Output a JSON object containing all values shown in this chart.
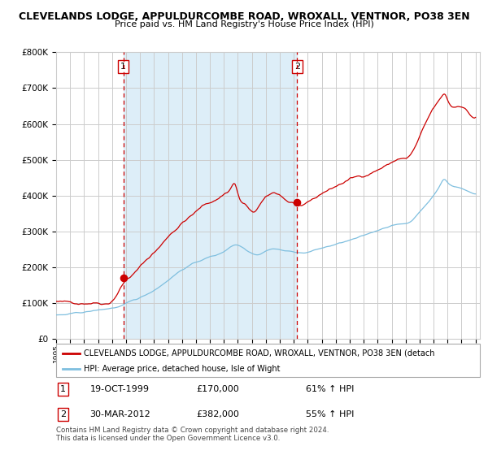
{
  "title_line1": "CLEVELANDS LODGE, APPULDURCOMBE ROAD, WROXALL, VENTNOR, PO38 3EN",
  "title_line2": "Price paid vs. HM Land Registry's House Price Index (HPI)",
  "ylim": [
    0,
    800000
  ],
  "yticks": [
    0,
    100000,
    200000,
    300000,
    400000,
    500000,
    600000,
    700000,
    800000
  ],
  "ytick_labels": [
    "£0",
    "£100K",
    "£200K",
    "£300K",
    "£400K",
    "£500K",
    "£600K",
    "£700K",
    "£800K"
  ],
  "hpi_color": "#7fbfdf",
  "price_color": "#cc0000",
  "shade_color": "#ddeef8",
  "grid_color": "#cccccc",
  "background_color": "#ffffff",
  "purchase1_year": 1999.8,
  "purchase1_value": 170000,
  "purchase2_year": 2012.25,
  "purchase2_value": 382000,
  "legend_label1": "CLEVELANDS LODGE, APPULDURCOMBE ROAD, WROXALL, VENTNOR, PO38 3EN (detach",
  "legend_label2": "HPI: Average price, detached house, Isle of Wight",
  "annotation1_date": "19-OCT-1999",
  "annotation1_price": "£170,000",
  "annotation1_hpi": "61% ↑ HPI",
  "annotation2_date": "30-MAR-2012",
  "annotation2_price": "£382,000",
  "annotation2_hpi": "55% ↑ HPI",
  "footer_text": "Contains HM Land Registry data © Crown copyright and database right 2024.\nThis data is licensed under the Open Government Licence v3.0."
}
